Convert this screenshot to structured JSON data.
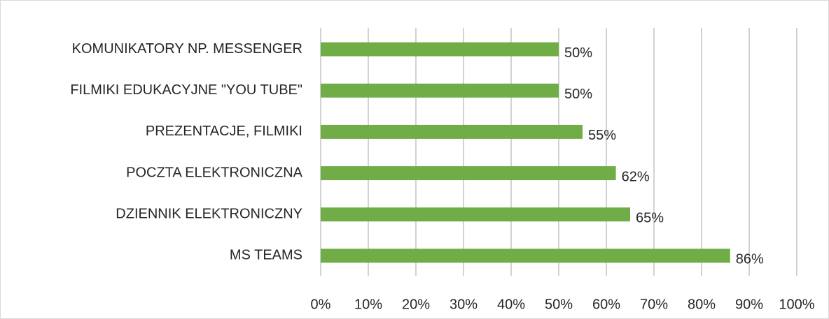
{
  "chart_data": {
    "type": "bar",
    "orientation": "horizontal",
    "categories": [
      "KOMUNIKATORY NP. MESSENGER",
      "FILMIKI EDUKACYJNE \"YOU TUBE\"",
      "PREZENTACJE, FILMIKI",
      "POCZTA ELEKTRONICZNA",
      "DZIENNIK ELEKTRONICZNY",
      "MS TEAMS"
    ],
    "values": [
      50,
      50,
      55,
      62,
      65,
      86
    ],
    "value_labels": [
      "50%",
      "50%",
      "55%",
      "62%",
      "65%",
      "86%"
    ],
    "color": "#70ad47",
    "xlim": [
      0,
      100
    ],
    "xticks": [
      {
        "value": 0,
        "label": "0%"
      },
      {
        "value": 10,
        "label": "10%"
      },
      {
        "value": 20,
        "label": "20%"
      },
      {
        "value": 30,
        "label": "30%"
      },
      {
        "value": 40,
        "label": "40%"
      },
      {
        "value": 50,
        "label": "50%"
      },
      {
        "value": 60,
        "label": "60%"
      },
      {
        "value": 70,
        "label": "70%"
      },
      {
        "value": 80,
        "label": "80%"
      },
      {
        "value": 90,
        "label": "90%"
      },
      {
        "value": 100,
        "label": "100%"
      }
    ],
    "grid": true
  }
}
